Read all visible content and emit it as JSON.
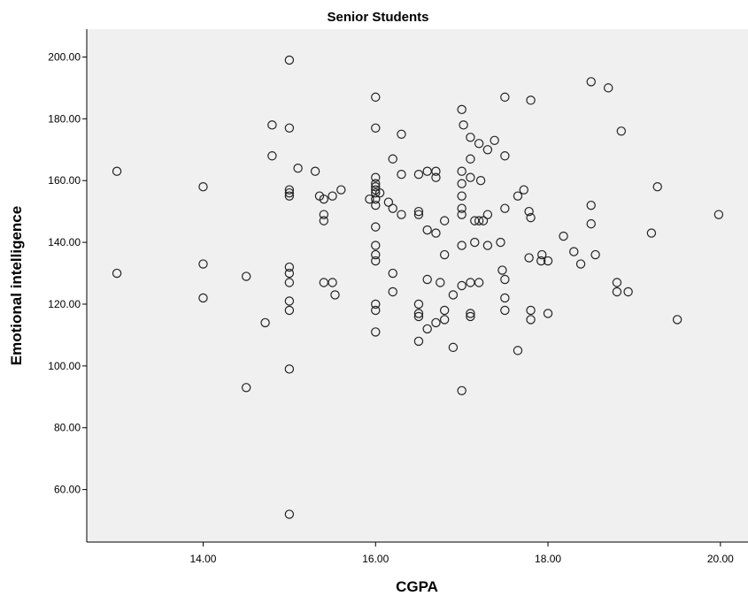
{
  "chart_data": {
    "type": "scatter",
    "title": "Senior Students",
    "xlabel": "CGPA",
    "ylabel": "Emotional intelligence",
    "xlim": [
      12.65,
      20.32
    ],
    "ylim": [
      43,
      209
    ],
    "x_ticks": [
      "14.00",
      "16.00",
      "18.00",
      "20.00"
    ],
    "x_tick_values": [
      14,
      16,
      18,
      20
    ],
    "y_ticks": [
      "60.00",
      "80.00",
      "100.00",
      "120.00",
      "140.00",
      "160.00",
      "180.00",
      "200.00"
    ],
    "y_tick_values": [
      60,
      80,
      100,
      120,
      140,
      160,
      180,
      200
    ],
    "grid": false,
    "legend": "none",
    "colors": {
      "plot_background": "#f0f0f0",
      "marker_edge": "#222222"
    },
    "series": [
      {
        "marker": "open-circle",
        "points": [
          [
            13.0,
            163
          ],
          [
            13.0,
            130
          ],
          [
            14.0,
            158
          ],
          [
            14.0,
            133
          ],
          [
            14.0,
            122
          ],
          [
            14.5,
            129
          ],
          [
            14.5,
            93
          ],
          [
            14.72,
            114
          ],
          [
            14.8,
            178
          ],
          [
            14.8,
            168
          ],
          [
            15.0,
            199
          ],
          [
            15.0,
            177
          ],
          [
            15.0,
            157
          ],
          [
            15.0,
            156
          ],
          [
            15.0,
            155
          ],
          [
            15.0,
            132
          ],
          [
            15.0,
            130
          ],
          [
            15.0,
            127
          ],
          [
            15.0,
            121
          ],
          [
            15.0,
            118
          ],
          [
            15.0,
            99
          ],
          [
            15.0,
            52
          ],
          [
            15.1,
            164
          ],
          [
            15.3,
            163
          ],
          [
            15.35,
            155
          ],
          [
            15.4,
            154
          ],
          [
            15.4,
            149
          ],
          [
            15.4,
            147
          ],
          [
            15.4,
            127
          ],
          [
            15.5,
            155
          ],
          [
            15.5,
            127
          ],
          [
            15.53,
            123
          ],
          [
            15.6,
            157
          ],
          [
            15.93,
            154
          ],
          [
            16.0,
            187
          ],
          [
            16.0,
            177
          ],
          [
            16.0,
            161
          ],
          [
            16.0,
            159
          ],
          [
            16.0,
            158
          ],
          [
            16.0,
            157
          ],
          [
            16.0,
            156
          ],
          [
            16.0,
            154
          ],
          [
            16.0,
            152
          ],
          [
            16.0,
            145
          ],
          [
            16.0,
            139
          ],
          [
            16.0,
            136
          ],
          [
            16.0,
            134
          ],
          [
            16.0,
            120
          ],
          [
            16.0,
            118
          ],
          [
            16.0,
            111
          ],
          [
            16.05,
            156
          ],
          [
            16.15,
            153
          ],
          [
            16.2,
            167
          ],
          [
            16.2,
            151
          ],
          [
            16.2,
            130
          ],
          [
            16.2,
            124
          ],
          [
            16.3,
            175
          ],
          [
            16.3,
            162
          ],
          [
            16.3,
            149
          ],
          [
            16.5,
            162
          ],
          [
            16.5,
            150
          ],
          [
            16.5,
            149
          ],
          [
            16.5,
            120
          ],
          [
            16.5,
            117
          ],
          [
            16.5,
            116
          ],
          [
            16.5,
            108
          ],
          [
            16.6,
            163
          ],
          [
            16.6,
            144
          ],
          [
            16.6,
            128
          ],
          [
            16.6,
            112
          ],
          [
            16.7,
            163
          ],
          [
            16.7,
            161
          ],
          [
            16.7,
            143
          ],
          [
            16.7,
            114
          ],
          [
            16.75,
            127
          ],
          [
            16.8,
            147
          ],
          [
            16.8,
            136
          ],
          [
            16.8,
            118
          ],
          [
            16.8,
            115
          ],
          [
            16.9,
            123
          ],
          [
            16.9,
            106
          ],
          [
            17.0,
            183
          ],
          [
            17.0,
            163
          ],
          [
            17.0,
            159
          ],
          [
            17.0,
            155
          ],
          [
            17.0,
            151
          ],
          [
            17.0,
            149
          ],
          [
            17.0,
            139
          ],
          [
            17.0,
            126
          ],
          [
            17.0,
            92
          ],
          [
            17.02,
            178
          ],
          [
            17.1,
            174
          ],
          [
            17.1,
            167
          ],
          [
            17.1,
            161
          ],
          [
            17.1,
            127
          ],
          [
            17.1,
            117
          ],
          [
            17.1,
            116
          ],
          [
            17.15,
            147
          ],
          [
            17.15,
            140
          ],
          [
            17.2,
            172
          ],
          [
            17.2,
            147
          ],
          [
            17.2,
            127
          ],
          [
            17.22,
            160
          ],
          [
            17.25,
            147
          ],
          [
            17.3,
            170
          ],
          [
            17.3,
            149
          ],
          [
            17.3,
            139
          ],
          [
            17.38,
            173
          ],
          [
            17.45,
            140
          ],
          [
            17.47,
            131
          ],
          [
            17.5,
            187
          ],
          [
            17.5,
            168
          ],
          [
            17.5,
            151
          ],
          [
            17.5,
            128
          ],
          [
            17.5,
            122
          ],
          [
            17.5,
            118
          ],
          [
            17.65,
            155
          ],
          [
            17.65,
            105
          ],
          [
            17.72,
            157
          ],
          [
            17.78,
            150
          ],
          [
            17.78,
            135
          ],
          [
            17.8,
            186
          ],
          [
            17.8,
            148
          ],
          [
            17.8,
            118
          ],
          [
            17.8,
            115
          ],
          [
            17.92,
            134
          ],
          [
            17.93,
            136
          ],
          [
            18.0,
            134
          ],
          [
            18.0,
            117
          ],
          [
            18.18,
            142
          ],
          [
            18.3,
            137
          ],
          [
            18.38,
            133
          ],
          [
            18.5,
            192
          ],
          [
            18.5,
            152
          ],
          [
            18.5,
            146
          ],
          [
            18.55,
            136
          ],
          [
            18.7,
            190
          ],
          [
            18.8,
            127
          ],
          [
            18.8,
            124
          ],
          [
            18.85,
            176
          ],
          [
            18.93,
            124
          ],
          [
            19.2,
            143
          ],
          [
            19.27,
            158
          ],
          [
            19.5,
            115
          ],
          [
            19.98,
            149
          ]
        ]
      }
    ]
  }
}
